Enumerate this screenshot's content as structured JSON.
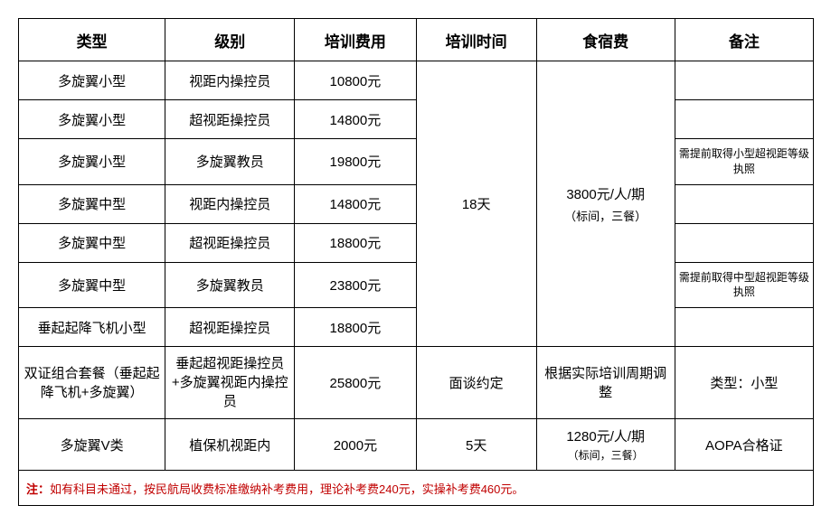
{
  "headers": {
    "type": "类型",
    "level": "级别",
    "fee": "培训费用",
    "duration": "培训时间",
    "board": "食宿费",
    "remark": "备注"
  },
  "rows": [
    {
      "type": "多旋翼小型",
      "level": "视距内操控员",
      "fee": "10800元",
      "remark": ""
    },
    {
      "type": "多旋翼小型",
      "level": "超视距操控员",
      "fee": "14800元",
      "remark": ""
    },
    {
      "type": "多旋翼小型",
      "level": "多旋翼教员",
      "fee": "19800元",
      "remark": "需提前取得小型超视距等级执照"
    },
    {
      "type": "多旋翼中型",
      "level": "视距内操控员",
      "fee": "14800元",
      "remark": ""
    },
    {
      "type": "多旋翼中型",
      "level": "超视距操控员",
      "fee": "18800元",
      "remark": ""
    },
    {
      "type": "多旋翼中型",
      "level": "多旋翼教员",
      "fee": "23800元",
      "remark": "需提前取得中型超视距等级执照"
    },
    {
      "type": "垂起起降飞机小型",
      "level": "超视距操控员",
      "fee": "18800元",
      "remark": ""
    }
  ],
  "group1": {
    "duration": "18天",
    "board_main": "3800元/人/期",
    "board_sub": "（标间，三餐）"
  },
  "row8": {
    "type": "双证组合套餐（垂起起降飞机+多旋翼）",
    "level": "垂起超视距操控员+多旋翼视距内操控员",
    "fee": "25800元",
    "duration": "面谈约定",
    "board": "根据实际培训周期调整",
    "remark": "类型：小型"
  },
  "row9": {
    "type": "多旋翼V类",
    "level": "植保机视距内",
    "fee": "2000元",
    "duration": "5天",
    "board_main": "1280元/人/期",
    "board_sub": "（标间，三餐）",
    "remark": "AOPA合格证"
  },
  "note": {
    "label": "注：",
    "text": "如有科目未通过，按民航局收费标准缴纳补考费用，理论补考费240元，实操补考费460元。"
  },
  "style": {
    "border_color": "#000000",
    "note_color": "#c00000",
    "header_fontsize": 17,
    "cell_fontsize": 15,
    "small_fontsize": 12
  }
}
